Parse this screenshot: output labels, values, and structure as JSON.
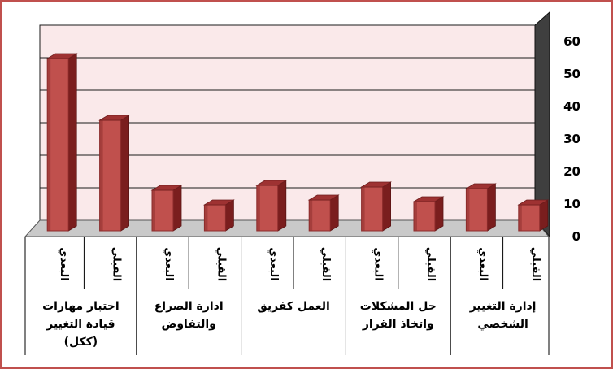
{
  "chart_data": {
    "type": "bar",
    "ylim": [
      0,
      60
    ],
    "yticks": [
      "0",
      "10",
      "20",
      "30",
      "40",
      "50",
      "60"
    ],
    "grid": true,
    "bar_color": "#c0504d",
    "wall_color": "#fae9ea",
    "categories": [
      "البعدي",
      "القبلي",
      "البعدي",
      "القبلي",
      "البعدي",
      "القبلي",
      "البعدي",
      "القبلي",
      "البعدي",
      "القبلي"
    ],
    "values": [
      53,
      34,
      12.5,
      8,
      14,
      9.5,
      13.5,
      9,
      13,
      8
    ],
    "groups": [
      {
        "lines": [
          "اختبار مهارات",
          "قيادة التغيير",
          "(ككل)"
        ]
      },
      {
        "lines": [
          "ادارة الصراع",
          "والتفاوض"
        ]
      },
      {
        "lines": [
          "العمل كفريق"
        ]
      },
      {
        "lines": [
          "حل المشكلات",
          "واتخاذ القرار"
        ]
      },
      {
        "lines": [
          "إدارة التغيير",
          "الشخصي"
        ]
      }
    ]
  }
}
